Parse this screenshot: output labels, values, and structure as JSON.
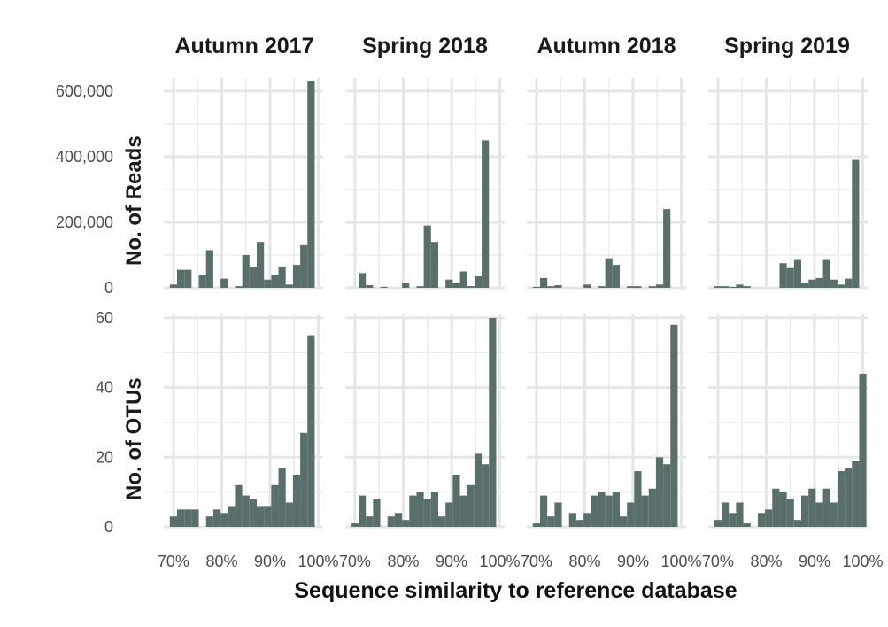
{
  "chart_data": {
    "type": "bar",
    "title": "",
    "xlabel": "Sequence similarity to reference database",
    "x_ticks": [
      "70%",
      "80%",
      "90%",
      "100%"
    ],
    "xlim": [
      68,
      101
    ],
    "bin_width": 1.5,
    "bin_centers": [
      70,
      71.5,
      73,
      74.5,
      76,
      77.5,
      79,
      80.5,
      82,
      83.5,
      85,
      86.5,
      88,
      89.5,
      91,
      92.5,
      94,
      95.5,
      97,
      98.5,
      100
    ],
    "bar_color": "#5a6f6c",
    "grid": true,
    "columns": [
      "Autumn 2017",
      "Spring 2018",
      "Autumn 2018",
      "Spring 2019"
    ],
    "rows": [
      {
        "label": "No. of Reads",
        "ylim": [
          0,
          640000
        ],
        "y_ticks": [
          0,
          200000,
          400000,
          600000
        ],
        "y_tick_labels": [
          "0",
          "200,000",
          "400,000",
          "600,000"
        ],
        "panels": [
          {
            "season": "Autumn 2017",
            "values": [
              10000,
              55000,
              55000,
              0,
              40000,
              115000,
              0,
              28000,
              0,
              5000,
              100000,
              65000,
              140000,
              25000,
              40000,
              65000,
              10000,
              70000,
              130000,
              630000,
              0
            ]
          },
          {
            "season": "Spring 2018",
            "values": [
              0,
              45000,
              8000,
              0,
              3000,
              0,
              0,
              15000,
              0,
              5000,
              190000,
              140000,
              0,
              25000,
              15000,
              50000,
              5000,
              35000,
              450000,
              0,
              0
            ]
          },
          {
            "season": "Autumn 2018",
            "values": [
              3000,
              30000,
              5000,
              8000,
              0,
              0,
              0,
              10000,
              0,
              5000,
              90000,
              70000,
              0,
              5000,
              5000,
              0,
              5000,
              10000,
              240000,
              0,
              0
            ]
          },
          {
            "season": "Spring 2019",
            "values": [
              5000,
              5000,
              3000,
              10000,
              5000,
              0,
              0,
              0,
              0,
              75000,
              60000,
              85000,
              15000,
              25000,
              30000,
              85000,
              25000,
              10000,
              28000,
              390000,
              0
            ]
          }
        ]
      },
      {
        "label": "No. of OTUs",
        "ylim": [
          0,
          61
        ],
        "y_ticks": [
          0,
          20,
          40,
          60
        ],
        "y_tick_labels": [
          "0",
          "20",
          "40",
          "60"
        ],
        "panels": [
          {
            "season": "Autumn 2017",
            "values": [
              3,
              5,
              5,
              5,
              0,
              3,
              5,
              4,
              6,
              12,
              9,
              8,
              6,
              6,
              12,
              17,
              7,
              15,
              27,
              55,
              0
            ]
          },
          {
            "season": "Spring 2018",
            "values": [
              1,
              9,
              3,
              8,
              0,
              3,
              4,
              2,
              9,
              10,
              8,
              10,
              3,
              7,
              15,
              9,
              12,
              21,
              18,
              60,
              0
            ]
          },
          {
            "season": "Autumn 2018",
            "values": [
              1,
              9,
              3,
              7,
              0,
              4,
              2,
              4,
              9,
              10,
              9,
              10,
              3,
              7,
              16,
              9,
              11,
              20,
              18,
              58,
              0
            ]
          },
          {
            "season": "Spring 2019",
            "values": [
              2,
              7,
              4,
              7,
              1,
              0,
              4,
              5,
              11,
              10,
              8,
              2,
              9,
              11,
              7,
              11,
              7,
              16,
              17,
              19,
              44
            ]
          }
        ]
      }
    ]
  }
}
